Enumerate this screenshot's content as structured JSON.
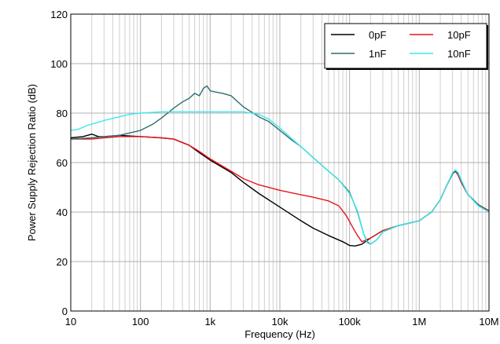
{
  "chart_data": {
    "type": "line",
    "title": "",
    "xlabel": "Frequency (Hz)",
    "ylabel": "Power Supply Rejection Ratio (dB)",
    "xscale": "log",
    "xlim": [
      10,
      10000000
    ],
    "ylim": [
      0,
      120
    ],
    "x_ticks": [
      10,
      100,
      1000,
      10000,
      100000,
      1000000,
      10000000
    ],
    "x_tick_labels": [
      "10",
      "100",
      "1k",
      "10k",
      "100k",
      "1M",
      "10M"
    ],
    "y_ticks": [
      0,
      20,
      40,
      60,
      80,
      100,
      120
    ],
    "y_tick_labels": [
      "0",
      "20",
      "40",
      "60",
      "80",
      "100",
      "120"
    ],
    "grid": true,
    "legend_position": "top-right",
    "series": [
      {
        "name": "0pF",
        "color": "#000000",
        "x": [
          10,
          15,
          20,
          25,
          30,
          50,
          100,
          200,
          300,
          500,
          700,
          1000,
          2000,
          3000,
          5000,
          10000,
          20000,
          30000,
          50000,
          80000,
          100000,
          120000,
          150000,
          200000,
          300000,
          500000,
          1000000,
          1500000,
          2000000,
          2500000,
          3000000,
          3300000,
          3600000,
          4000000,
          5000000,
          7000000,
          10000000
        ],
        "y": [
          70,
          70.5,
          71.5,
          70.5,
          70.5,
          71,
          70.5,
          70,
          69.5,
          67,
          64,
          61,
          56,
          52,
          47.5,
          42,
          36.5,
          33.5,
          30.5,
          28,
          26.5,
          26.3,
          27,
          29.5,
          32.5,
          34.5,
          36.5,
          40,
          45,
          51,
          55.5,
          56.5,
          55,
          52,
          47,
          43,
          40.5
        ]
      },
      {
        "name": "10pF",
        "color": "#e8141b",
        "x": [
          10,
          20,
          30,
          50,
          70,
          100,
          200,
          300,
          500,
          700,
          1000,
          2000,
          3000,
          5000,
          10000,
          20000,
          30000,
          50000,
          70000,
          90000,
          110000,
          130000,
          150000,
          200000,
          300000,
          500000,
          1000000,
          1500000,
          2000000,
          2500000,
          3000000,
          3300000,
          3600000,
          4000000,
          5000000,
          7000000,
          10000000
        ],
        "y": [
          69.5,
          69.5,
          70,
          70.5,
          70.5,
          70.5,
          70,
          69.5,
          67,
          64.5,
          61.5,
          56.5,
          53.5,
          51,
          48.8,
          47,
          46,
          44.5,
          42.5,
          38.5,
          34,
          30.5,
          28,
          29.5,
          32.5,
          34.5,
          36.5,
          40,
          45,
          51,
          55.5,
          56.8,
          55,
          52,
          47,
          43,
          40.5
        ]
      },
      {
        "name": "1nF",
        "color": "#2f6f6b",
        "x": [
          10,
          20,
          30,
          50,
          100,
          150,
          200,
          300,
          400,
          500,
          600,
          700,
          800,
          900,
          1000,
          1200,
          1500,
          2000,
          3000,
          5000,
          7000,
          10000,
          15000,
          20000,
          30000,
          50000,
          70000,
          100000,
          130000,
          160000,
          180000,
          200000,
          250000,
          300000,
          500000,
          1000000,
          1500000,
          2000000,
          2500000,
          3000000,
          3300000,
          3600000,
          4000000,
          5000000,
          7000000,
          10000000
        ],
        "y": [
          69.5,
          70,
          70.5,
          71,
          73,
          75.5,
          78,
          82,
          84.5,
          86,
          88,
          87,
          90,
          91,
          89,
          88.5,
          88,
          87,
          82.5,
          78.5,
          76.5,
          73,
          69,
          66.5,
          62,
          56.5,
          53,
          48,
          40,
          31,
          28,
          27,
          29,
          32,
          34.5,
          36.5,
          40,
          45,
          51,
          55.5,
          57,
          55.5,
          52.5,
          47,
          43,
          40
        ]
      },
      {
        "name": "10nF",
        "color": "#3ee8ec",
        "x": [
          10,
          13,
          17,
          20,
          30,
          50,
          70,
          100,
          200,
          300,
          500,
          700,
          1000,
          2000,
          3000,
          5000,
          7000,
          10000,
          15000,
          20000,
          30000,
          50000,
          70000,
          100000,
          130000,
          160000,
          180000,
          200000,
          250000,
          300000,
          500000,
          1000000,
          1500000,
          2000000,
          2500000,
          3000000,
          3300000,
          3600000,
          4000000,
          5000000,
          7000000,
          10000000
        ],
        "y": [
          73,
          73.5,
          75,
          75.5,
          77,
          78.5,
          79.5,
          80,
          80.5,
          80.5,
          80.5,
          80.5,
          80.5,
          80.5,
          80.5,
          79.5,
          77.5,
          74,
          69.5,
          66.5,
          62,
          56.5,
          53,
          47.5,
          40.5,
          31,
          27.5,
          27,
          29,
          32,
          34.5,
          36.5,
          40,
          45,
          51,
          56,
          57,
          56,
          53,
          47,
          42.5,
          40
        ]
      }
    ]
  }
}
